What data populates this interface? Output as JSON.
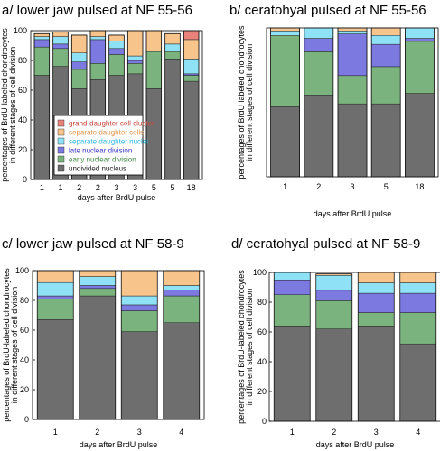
{
  "colors": {
    "grand-daughter cell cluster": "#e8827a",
    "separate daughter cells": "#f7c48c",
    "separate daughter nuclei": "#8fe2f5",
    "late nuclear division": "#7c79e0",
    "early nuclear division": "#7bb37e",
    "undivided nucleus": "#6e6e6e",
    "legend_text": {
      "grand-daughter cell cluster": "#c8463c",
      "separate daughter cells": "#e0944a",
      "separate daughter nuclei": "#2ab6de",
      "late nuclear division": "#3a36c8",
      "early nuclear division": "#3f8a45",
      "undivided nucleus": "#222222"
    }
  },
  "legend": {
    "entries": [
      "grand-daughter cell cluster",
      "separate daughter cells",
      "separate daughter nuclei",
      "late nuclear division",
      "early nuclear division",
      "undivided nucleus"
    ]
  },
  "chart_data": [
    {
      "type": "bar",
      "stacked": true,
      "title": "a/ lower jaw pulsed at NF 55-56",
      "xlabel": "days after BrdU pulse",
      "ylabel": [
        "percentages of BrdU-labeled chondrocytes",
        "in different stages of cell division"
      ],
      "ylim": [
        0,
        100
      ],
      "yticks": [
        0,
        20,
        40,
        60,
        80,
        100
      ],
      "categories": [
        "1",
        "1",
        "2",
        "2",
        "3",
        "3",
        "5",
        "5",
        "18"
      ],
      "series": [
        {
          "name": "undivided nucleus",
          "values": [
            70,
            76,
            61,
            67,
            70,
            71,
            61,
            81,
            66
          ]
        },
        {
          "name": "early nuclear division",
          "values": [
            19,
            12,
            13,
            11,
            14,
            7,
            25,
            5,
            4
          ]
        },
        {
          "name": "late nuclear division",
          "values": [
            5,
            3,
            5,
            16,
            4,
            2,
            0,
            0,
            1
          ]
        },
        {
          "name": "separate daughter nuclei",
          "values": [
            2,
            5,
            6,
            2,
            5,
            3,
            0,
            5,
            10
          ]
        },
        {
          "name": "separate daughter cells",
          "values": [
            2,
            3,
            12,
            4,
            4,
            17,
            14,
            7,
            13
          ]
        },
        {
          "name": "grand-daughter cell cluster",
          "values": [
            0,
            0,
            0,
            0,
            0,
            0,
            0,
            0,
            6
          ]
        }
      ]
    },
    {
      "type": "bar",
      "stacked": true,
      "title": "b/ ceratohyal pulsed at NF 55-56",
      "xlabel": "days after BrdU pulse",
      "ylabel": [
        "percentages of BrdU labeled chondrocytes",
        "in different stages of cell division"
      ],
      "ylim": [
        0,
        100
      ],
      "yticks": [],
      "categories": [
        "1",
        "2",
        "3",
        "5",
        "18"
      ],
      "series": [
        {
          "name": "undivided nucleus",
          "values": [
            47,
            55,
            49,
            49,
            56
          ]
        },
        {
          "name": "early nuclear division",
          "values": [
            48,
            29,
            19,
            25,
            35
          ]
        },
        {
          "name": "late nuclear division",
          "values": [
            0,
            9,
            28,
            15,
            2
          ]
        },
        {
          "name": "separate daughter nuclei",
          "values": [
            3,
            7,
            2,
            6,
            7
          ]
        },
        {
          "name": "separate daughter cells",
          "values": [
            2,
            0,
            2,
            5,
            0
          ]
        },
        {
          "name": "grand-daughter cell cluster",
          "values": [
            0,
            0,
            0,
            0,
            0
          ]
        }
      ]
    },
    {
      "type": "bar",
      "stacked": true,
      "title": "c/ lower jaw pulsed at NF 58-9",
      "xlabel": "days after BrdU pulse",
      "ylabel": [
        "percentages of BrdU-labeled chondrocytes",
        "in different stages of cell division"
      ],
      "ylim": [
        0,
        100
      ],
      "yticks": [
        0,
        20,
        40,
        60,
        80,
        100
      ],
      "categories": [
        "1",
        "2",
        "3",
        "4"
      ],
      "series": [
        {
          "name": "undivided nucleus",
          "values": [
            67,
            83,
            59,
            65
          ]
        },
        {
          "name": "early nuclear division",
          "values": [
            14,
            5,
            14,
            18
          ]
        },
        {
          "name": "late nuclear division",
          "values": [
            2,
            2,
            4,
            4
          ]
        },
        {
          "name": "separate daughter nuclei",
          "values": [
            9,
            6,
            6,
            3
          ]
        },
        {
          "name": "separate daughter cells",
          "values": [
            8,
            4,
            17,
            10
          ]
        },
        {
          "name": "grand-daughter cell cluster",
          "values": [
            0,
            0,
            0,
            0
          ]
        }
      ]
    },
    {
      "type": "bar",
      "stacked": true,
      "title": "d/ ceratohyal pulsed at NF 58-9",
      "xlabel": "days after BrdU pulse",
      "ylabel": [
        "percentages of BrdU-labeled chondrocytes",
        "in different stages of cell division"
      ],
      "ylim": [
        0,
        100
      ],
      "yticks": [
        0,
        20,
        40,
        60,
        80,
        100
      ],
      "categories": [
        "1",
        "2",
        "3",
        "4"
      ],
      "series": [
        {
          "name": "undivided nucleus",
          "values": [
            64,
            62,
            64,
            52
          ]
        },
        {
          "name": "early nuclear division",
          "values": [
            21,
            19,
            9,
            21
          ]
        },
        {
          "name": "late nuclear division",
          "values": [
            10,
            7,
            13,
            13
          ]
        },
        {
          "name": "separate daughter nuclei",
          "values": [
            5,
            10,
            7,
            7
          ]
        },
        {
          "name": "separate daughter cells",
          "values": [
            0,
            1,
            7,
            7
          ]
        },
        {
          "name": "grand-daughter cell cluster",
          "values": [
            0,
            0,
            0,
            0
          ]
        }
      ]
    }
  ]
}
